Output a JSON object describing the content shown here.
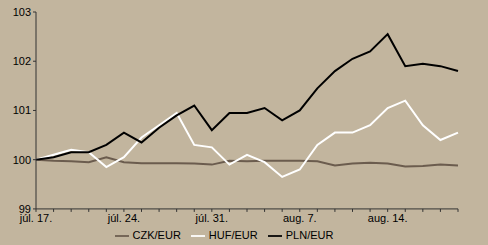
{
  "chart_data": {
    "type": "line",
    "categories": [
      "júl. 17.",
      null,
      null,
      null,
      null,
      "júl. 24.",
      null,
      null,
      null,
      null,
      "júl. 31.",
      null,
      null,
      null,
      null,
      "aug. 7.",
      null,
      null,
      null,
      null,
      "aug. 14.",
      null,
      null,
      null,
      null
    ],
    "series": [
      {
        "name": "CZK/EUR",
        "color": "#6b5c4e",
        "values": [
          100,
          99.98,
          99.97,
          99.95,
          100.05,
          99.95,
          99.93,
          99.93,
          99.93,
          99.92,
          99.9,
          99.98,
          99.97,
          99.98,
          99.98,
          99.98,
          99.97,
          99.88,
          99.92,
          99.94,
          99.92,
          99.86,
          99.87,
          99.9,
          99.88
        ]
      },
      {
        "name": "HUF/EUR",
        "color": "#ffffff",
        "values": [
          100,
          100.1,
          100.2,
          100.15,
          99.85,
          100.05,
          100.45,
          100.7,
          100.95,
          100.3,
          100.25,
          99.9,
          100.1,
          99.95,
          99.65,
          99.8,
          100.3,
          100.55,
          100.55,
          100.7,
          101.05,
          101.2,
          100.7,
          100.4,
          100.55
        ]
      },
      {
        "name": "PLN/EUR",
        "color": "#000000",
        "values": [
          100,
          100.05,
          100.15,
          100.15,
          100.3,
          100.55,
          100.35,
          100.65,
          100.9,
          101.1,
          100.6,
          100.95,
          100.95,
          101.05,
          100.8,
          101.0,
          101.45,
          101.8,
          102.05,
          102.2,
          102.55,
          101.9,
          101.95,
          101.9,
          101.8
        ]
      }
    ],
    "ylim": [
      99,
      103
    ],
    "yticks": [
      99,
      100,
      101,
      102,
      103
    ],
    "grid": false,
    "legend": "bottom"
  }
}
